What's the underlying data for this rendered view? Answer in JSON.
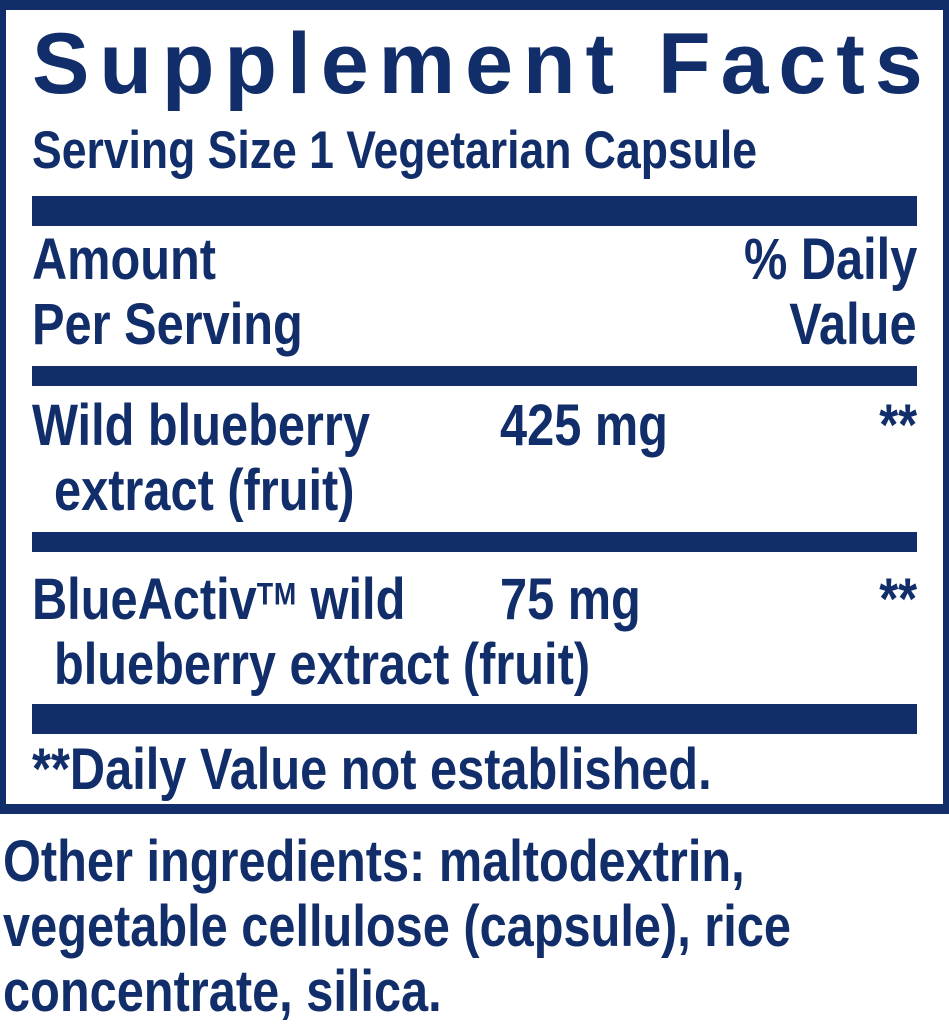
{
  "colors": {
    "navy": "#112e6a",
    "background": "#ffffff"
  },
  "supplement_facts": {
    "title": "Supplement Facts",
    "serving_size": "Serving Size 1 Vegetarian Capsule",
    "column_headers": {
      "amount_line1": "Amount",
      "amount_line2": "Per Serving",
      "daily_value_line1": "% Daily",
      "daily_value_line2": "Value"
    },
    "ingredient_rows": [
      {
        "name_line1": "Wild blueberry",
        "name_line2": "extract (fruit)",
        "amount": "425 mg",
        "daily_value": "**"
      },
      {
        "name_line1_brand": "BlueActiv",
        "name_line1_trademark": "TM",
        "name_line1_rest": " wild",
        "name_line2": "blueberry extract (fruit)",
        "amount": "75 mg",
        "daily_value": "**"
      }
    ],
    "footnote": "**Daily Value not established."
  },
  "other_ingredients": {
    "lines": [
      "Other ingredients: maltodextrin,",
      "vegetable cellulose (capsule), rice",
      "concentrate, silica."
    ]
  }
}
